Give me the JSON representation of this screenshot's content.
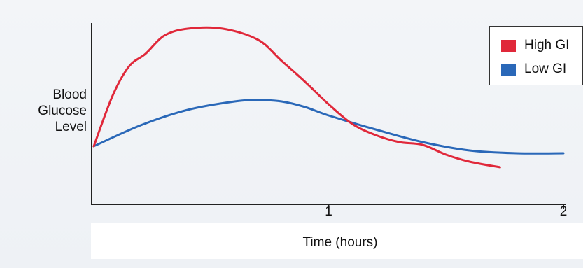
{
  "chart_data": {
    "type": "line",
    "xlabel": "Time (hours)",
    "ylabel": "Blood\nGlucose\nLevel",
    "x_ticks": [
      "1",
      "2"
    ],
    "xlim": [
      0,
      2
    ],
    "ylim": [
      0,
      100
    ],
    "grid": false,
    "legend_placement": "top-right",
    "series": [
      {
        "name": "High GI",
        "color": "#e0283a",
        "x": [
          0,
          0.08,
          0.15,
          0.22,
          0.3,
          0.4,
          0.55,
          0.7,
          0.8,
          0.9,
          1.0,
          1.1,
          1.2,
          1.3,
          1.4,
          1.5,
          1.6,
          1.73
        ],
        "y": [
          20,
          56,
          77,
          86,
          99,
          104,
          104,
          96,
          81,
          66,
          50,
          36,
          28,
          23,
          21,
          14,
          9,
          5
        ]
      },
      {
        "name": "Low GI",
        "color": "#2a68b8",
        "x": [
          0,
          0.2,
          0.4,
          0.6,
          0.7,
          0.8,
          0.9,
          1.0,
          1.2,
          1.4,
          1.6,
          1.8,
          2.0
        ],
        "y": [
          20,
          35,
          46,
          52,
          53,
          52,
          48,
          42,
          32,
          23,
          17,
          15,
          15
        ]
      }
    ]
  }
}
